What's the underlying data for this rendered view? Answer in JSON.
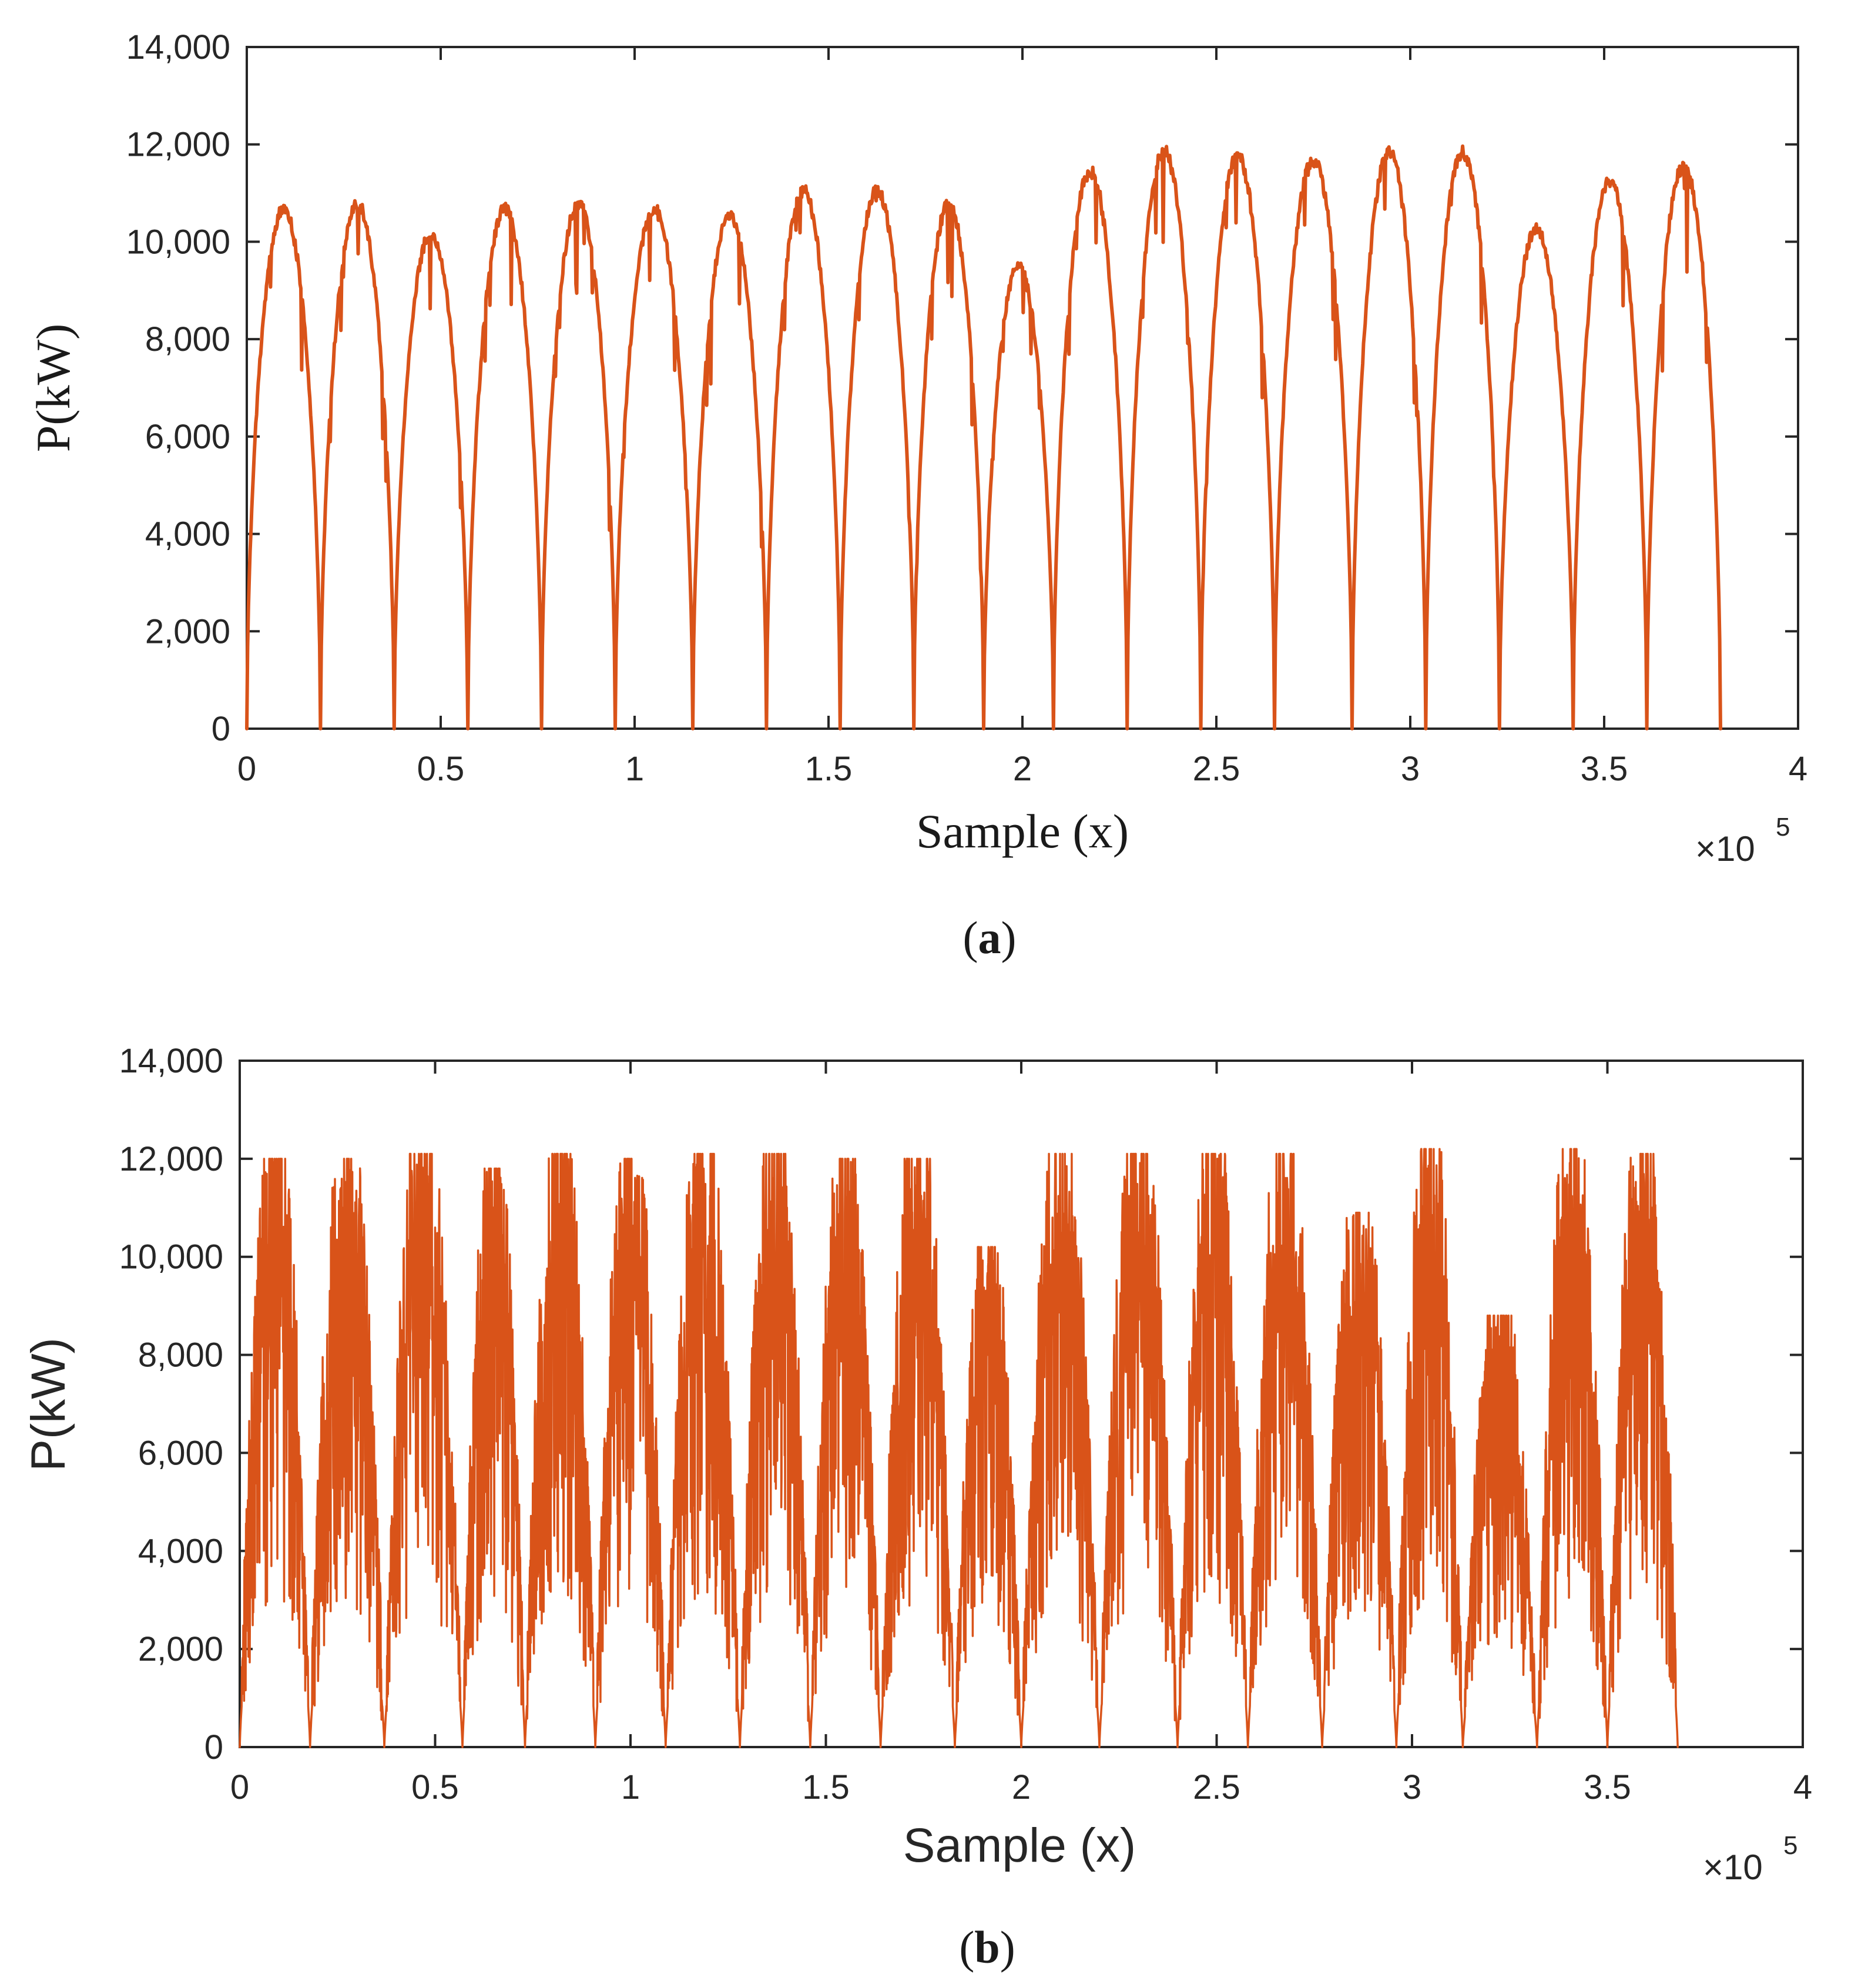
{
  "chart_data": [
    {
      "type": "line",
      "panel_label": "a",
      "xlabel": "Sample (x)",
      "ylabel": "P(kW)",
      "xlim": [
        0,
        4
      ],
      "ylim": [
        0,
        14000
      ],
      "x_multiplier": "×10",
      "x_multiplier_exponent": "5",
      "xticks": [
        "0",
        "0.5",
        "1",
        "1.5",
        "2",
        "2.5",
        "3",
        "3.5",
        "4"
      ],
      "yticks": [
        "0",
        "2,000",
        "4,000",
        "6,000",
        "8,000",
        "10,000",
        "12,000",
        "14,000"
      ],
      "x_tick_values": [
        0,
        0.5,
        1,
        1.5,
        2,
        2.5,
        3,
        3.5,
        4
      ],
      "y_tick_values": [
        0,
        2000,
        4000,
        6000,
        8000,
        10000,
        12000,
        14000
      ],
      "series": [
        {
          "name": "P",
          "color": "#d95319",
          "style": "smooth",
          "x_start": 0,
          "x_end": 3.8,
          "troughs": [
            0,
            0.19,
            0.38,
            0.57,
            0.76,
            0.95,
            1.15,
            1.34,
            1.53,
            1.72,
            1.9,
            2.08,
            2.27,
            2.46,
            2.65,
            2.85,
            3.04,
            3.23,
            3.42,
            3.61,
            3.8
          ],
          "peaks": [
            10800,
            10900,
            10300,
            10800,
            10900,
            10800,
            10700,
            11200,
            11200,
            10900,
            9600,
            11600,
            12000,
            11900,
            11800,
            12000,
            12000,
            10400,
            11400,
            11700
          ]
        }
      ]
    },
    {
      "type": "line",
      "panel_label": "b",
      "xlabel": "Sample (x)",
      "ylabel": "P(kW)",
      "xlim": [
        0,
        4
      ],
      "ylim": [
        0,
        14000
      ],
      "x_multiplier": "×10",
      "x_multiplier_exponent": "5",
      "xticks": [
        "0",
        "0.5",
        "1",
        "1.5",
        "2",
        "2.5",
        "3",
        "3.5",
        "4"
      ],
      "yticks": [
        "0",
        "2,000",
        "4,000",
        "6,000",
        "8,000",
        "10,000",
        "12,000",
        "14,000"
      ],
      "x_tick_values": [
        0,
        0.5,
        1,
        1.5,
        2,
        2.5,
        3,
        3.5,
        4
      ],
      "y_tick_values": [
        0,
        2000,
        4000,
        6000,
        8000,
        10000,
        12000,
        14000
      ],
      "series": [
        {
          "name": "P",
          "color": "#d95319",
          "style": "noisy",
          "x_start": 0,
          "x_end": 3.68,
          "troughs": [
            0.0,
            0.18,
            0.37,
            0.57,
            0.73,
            0.91,
            1.09,
            1.28,
            1.46,
            1.64,
            1.83,
            2.0,
            2.2,
            2.4,
            2.58,
            2.77,
            2.96,
            3.13,
            3.32,
            3.5,
            3.68
          ],
          "peaks": [
            12000,
            12000,
            12100,
            11800,
            12100,
            12000,
            12100,
            12100,
            12000,
            12000,
            10200,
            12100,
            12100,
            12100,
            12100,
            10900,
            12200,
            8800,
            12200,
            12100
          ]
        }
      ]
    }
  ]
}
